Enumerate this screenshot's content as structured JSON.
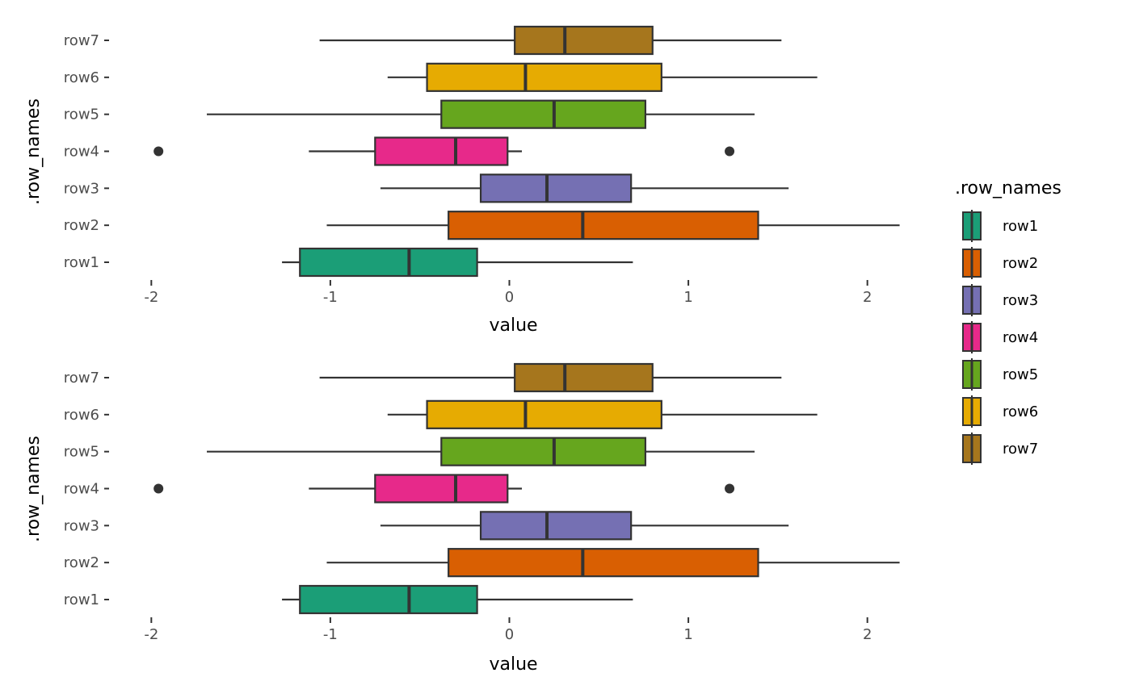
{
  "chart_data": [
    {
      "type": "boxplot",
      "orientation": "horizontal",
      "xlabel": "value",
      "ylabel": ".row_names",
      "xlim": [
        -2.2,
        2.2
      ],
      "xticks": [
        -2,
        -1,
        0,
        1,
        2
      ],
      "grid": false,
      "series": [
        {
          "name": "row1",
          "color": "#1B9E77",
          "whisker_low": -1.27,
          "q1": -1.17,
          "median": -0.56,
          "q3": -0.18,
          "whisker_high": 0.69,
          "outliers": []
        },
        {
          "name": "row2",
          "color": "#D95F02",
          "whisker_low": -1.02,
          "q1": -0.34,
          "median": 0.41,
          "q3": 1.39,
          "whisker_high": 2.18,
          "outliers": []
        },
        {
          "name": "row3",
          "color": "#7570B3",
          "whisker_low": -0.72,
          "q1": -0.16,
          "median": 0.21,
          "q3": 0.68,
          "whisker_high": 1.56,
          "outliers": []
        },
        {
          "name": "row4",
          "color": "#E7298A",
          "whisker_low": -1.12,
          "q1": -0.75,
          "median": -0.3,
          "q3": -0.01,
          "whisker_high": 0.07,
          "outliers": [
            -1.96,
            1.23
          ]
        },
        {
          "name": "row5",
          "color": "#66A61E",
          "whisker_low": -1.69,
          "q1": -0.38,
          "median": 0.25,
          "q3": 0.76,
          "whisker_high": 1.37,
          "outliers": []
        },
        {
          "name": "row6",
          "color": "#E6AB02",
          "whisker_low": -0.68,
          "q1": -0.46,
          "median": 0.09,
          "q3": 0.85,
          "whisker_high": 1.72,
          "outliers": []
        },
        {
          "name": "row7",
          "color": "#A6761D",
          "whisker_low": -1.06,
          "q1": 0.03,
          "median": 0.31,
          "q3": 0.8,
          "whisker_high": 1.52,
          "outliers": []
        }
      ]
    },
    {
      "type": "boxplot",
      "orientation": "horizontal",
      "xlabel": "value",
      "ylabel": ".row_names",
      "xlim": [
        -2.2,
        2.2
      ],
      "xticks": [
        -2,
        -1,
        0,
        1,
        2
      ],
      "grid": false,
      "series": [
        {
          "name": "row1",
          "color": "#1B9E77",
          "whisker_low": -1.27,
          "q1": -1.17,
          "median": -0.56,
          "q3": -0.18,
          "whisker_high": 0.69,
          "outliers": []
        },
        {
          "name": "row2",
          "color": "#D95F02",
          "whisker_low": -1.02,
          "q1": -0.34,
          "median": 0.41,
          "q3": 1.39,
          "whisker_high": 2.18,
          "outliers": []
        },
        {
          "name": "row3",
          "color": "#7570B3",
          "whisker_low": -0.72,
          "q1": -0.16,
          "median": 0.21,
          "q3": 0.68,
          "whisker_high": 1.56,
          "outliers": []
        },
        {
          "name": "row4",
          "color": "#E7298A",
          "whisker_low": -1.12,
          "q1": -0.75,
          "median": -0.3,
          "q3": -0.01,
          "whisker_high": 0.07,
          "outliers": [
            -1.96,
            1.23
          ]
        },
        {
          "name": "row5",
          "color": "#66A61E",
          "whisker_low": -1.69,
          "q1": -0.38,
          "median": 0.25,
          "q3": 0.76,
          "whisker_high": 1.37,
          "outliers": []
        },
        {
          "name": "row6",
          "color": "#E6AB02",
          "whisker_low": -0.68,
          "q1": -0.46,
          "median": 0.09,
          "q3": 0.85,
          "whisker_high": 1.72,
          "outliers": []
        },
        {
          "name": "row7",
          "color": "#A6761D",
          "whisker_low": -1.06,
          "q1": 0.03,
          "median": 0.31,
          "q3": 0.8,
          "whisker_high": 1.52,
          "outliers": []
        }
      ]
    }
  ],
  "legend": {
    "title": ".row_names",
    "placement": "right",
    "items": [
      {
        "label": "row1",
        "color": "#1B9E77"
      },
      {
        "label": "row2",
        "color": "#D95F02"
      },
      {
        "label": "row3",
        "color": "#7570B3"
      },
      {
        "label": "row4",
        "color": "#E7298A"
      },
      {
        "label": "row5",
        "color": "#66A61E"
      },
      {
        "label": "row6",
        "color": "#E6AB02"
      },
      {
        "label": "row7",
        "color": "#A6761D"
      }
    ]
  },
  "style": {
    "stroke_color": "#333333",
    "tick_label_color": "#4d4d4d",
    "background": "#ffffff"
  }
}
